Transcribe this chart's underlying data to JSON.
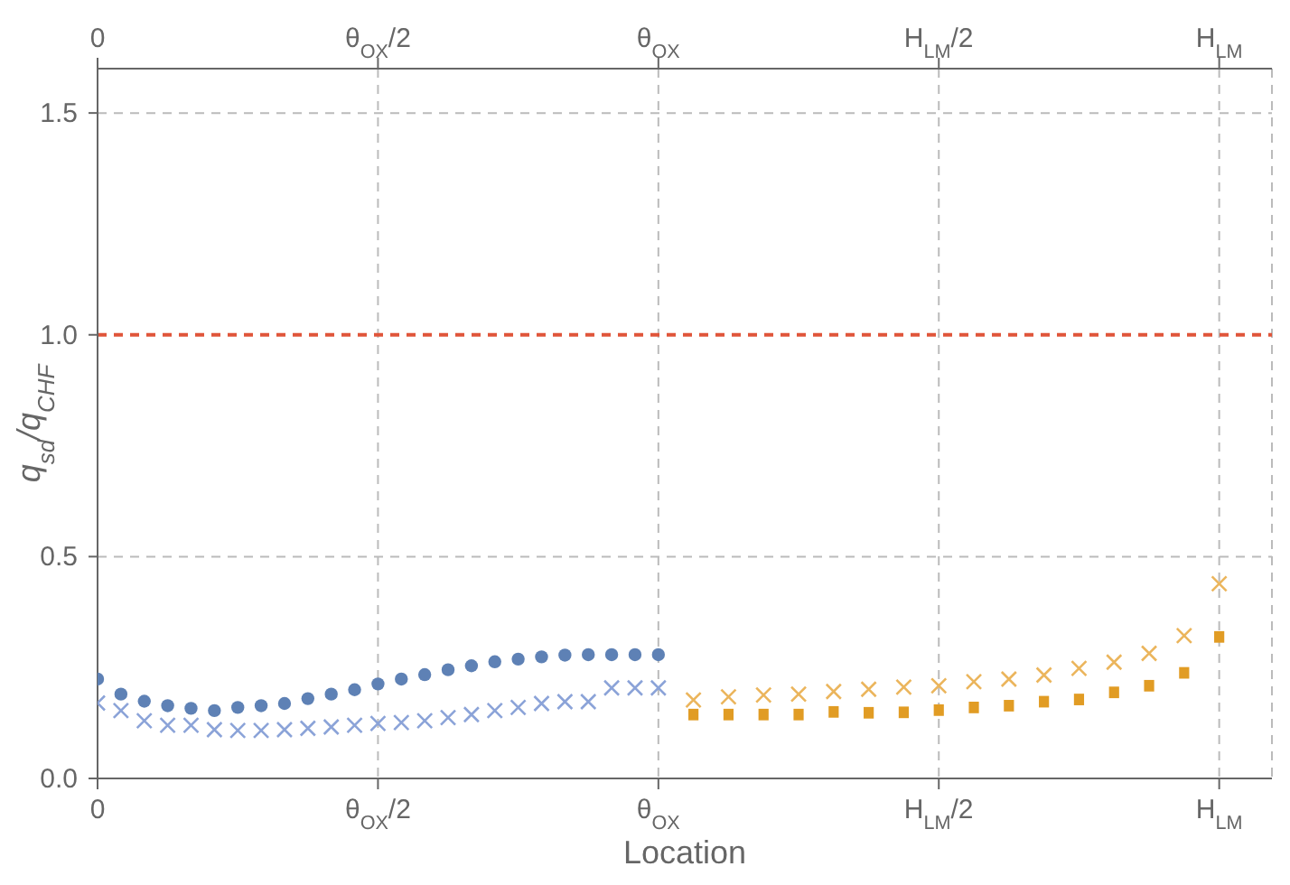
{
  "chart_data": {
    "type": "scatter",
    "xlabel": "Location",
    "ylabel": "q$_{sd}$/q$_{CHF}$",
    "categories": [
      "0",
      null,
      null,
      null,
      null,
      null,
      null,
      null,
      null,
      null,
      null,
      null,
      null,
      null,
      null,
      null,
      null,
      null,
      null,
      null,
      null,
      null,
      null,
      null,
      "θ$_{OX}$/2",
      null,
      null,
      null,
      null,
      null,
      null,
      null,
      null,
      null,
      null,
      null,
      null,
      null,
      null,
      null,
      null,
      null,
      null,
      null,
      null,
      null,
      null,
      null,
      "θ$_{OX}$",
      null,
      null,
      null,
      null,
      null,
      null,
      null,
      null,
      null,
      null,
      null,
      null,
      null,
      null,
      null,
      null,
      null,
      null,
      null,
      null,
      null,
      null,
      null,
      "H$_{LM}$/2",
      null,
      null,
      null,
      null,
      null,
      null,
      null,
      null,
      null,
      null,
      null,
      null,
      null,
      null,
      null,
      null,
      null,
      null,
      null,
      null,
      null,
      null,
      null,
      "H$_{LM}$"
    ],
    "ylim": [
      0,
      1.6
    ],
    "yticks": [
      {
        "value": 0,
        "label": "0.0"
      },
      {
        "value": 0.5,
        "label": "0.5"
      },
      {
        "value": 1,
        "label": "1.0"
      },
      {
        "value": 1.5,
        "label": "1.5"
      }
    ],
    "grid": true,
    "ref_lines": [
      {
        "axis": "y",
        "value": 1,
        "color": "#e0553a",
        "line_style": "dashed"
      }
    ],
    "series": [
      {
        "color": "#5e81b5",
        "marker": "circle",
        "values": [
          0.224,
          null,
          0.19,
          null,
          0.174,
          null,
          0.164,
          null,
          0.158,
          null,
          0.153,
          null,
          0.16,
          null,
          0.164,
          null,
          0.169,
          null,
          0.18,
          null,
          0.19,
          null,
          0.2,
          null,
          0.213,
          null,
          0.224,
          null,
          0.234,
          null,
          0.245,
          null,
          0.254,
          null,
          0.263,
          null,
          0.269,
          null,
          0.274,
          null,
          0.278,
          null,
          0.279,
          null,
          0.279,
          null,
          0.279,
          null,
          0.279,
          null,
          null,
          null,
          null,
          null,
          null,
          null,
          null,
          null,
          null,
          null,
          null,
          null,
          null,
          null,
          null,
          null,
          null,
          null,
          null,
          null,
          null,
          null,
          null,
          null,
          null,
          null,
          null,
          null,
          null,
          null,
          null,
          null,
          null,
          null,
          null,
          null,
          null,
          null,
          null,
          null,
          null,
          null,
          null,
          null,
          null,
          null,
          null
        ]
      },
      {
        "color": "#8ba3d8",
        "marker": "cross",
        "values": [
          0.17,
          null,
          0.153,
          null,
          0.13,
          null,
          0.12,
          null,
          0.12,
          null,
          0.11,
          null,
          0.108,
          null,
          0.108,
          null,
          0.11,
          null,
          0.113,
          null,
          0.116,
          null,
          0.12,
          null,
          0.124,
          null,
          0.126,
          null,
          0.13,
          null,
          0.137,
          null,
          0.144,
          null,
          0.153,
          null,
          0.16,
          null,
          0.169,
          null,
          0.173,
          null,
          0.173,
          null,
          0.204,
          null,
          0.204,
          null,
          0.204,
          null,
          null,
          null,
          null,
          null,
          null,
          null,
          null,
          null,
          null,
          null,
          null,
          null,
          null,
          null,
          null,
          null,
          null,
          null,
          null,
          null,
          null,
          null,
          null,
          null,
          null,
          null,
          null,
          null,
          null,
          null,
          null,
          null,
          null,
          null,
          null,
          null,
          null,
          null,
          null,
          null,
          null,
          null,
          null,
          null,
          null,
          null,
          null
        ]
      },
      {
        "color": "#e19c24",
        "marker": "square",
        "values": [
          null,
          null,
          null,
          null,
          null,
          null,
          null,
          null,
          null,
          null,
          null,
          null,
          null,
          null,
          null,
          null,
          null,
          null,
          null,
          null,
          null,
          null,
          null,
          null,
          null,
          null,
          null,
          null,
          null,
          null,
          null,
          null,
          null,
          null,
          null,
          null,
          null,
          null,
          null,
          null,
          null,
          null,
          null,
          null,
          null,
          null,
          null,
          null,
          null,
          null,
          null,
          0.144,
          null,
          null,
          0.144,
          null,
          null,
          0.144,
          null,
          null,
          0.144,
          null,
          null,
          0.15,
          null,
          null,
          0.148,
          null,
          null,
          0.149,
          null,
          null,
          0.154,
          null,
          null,
          0.16,
          null,
          null,
          0.164,
          null,
          null,
          0.173,
          null,
          null,
          0.178,
          null,
          null,
          0.194,
          null,
          null,
          0.209,
          null,
          null,
          0.238,
          null,
          null,
          0.319
        ]
      },
      {
        "color": "#ebb55c",
        "marker": "cross",
        "values": [
          null,
          null,
          null,
          null,
          null,
          null,
          null,
          null,
          null,
          null,
          null,
          null,
          null,
          null,
          null,
          null,
          null,
          null,
          null,
          null,
          null,
          null,
          null,
          null,
          null,
          null,
          null,
          null,
          null,
          null,
          null,
          null,
          null,
          null,
          null,
          null,
          null,
          null,
          null,
          null,
          null,
          null,
          null,
          null,
          null,
          null,
          null,
          null,
          null,
          null,
          null,
          0.177,
          null,
          null,
          0.184,
          null,
          null,
          0.188,
          null,
          null,
          0.19,
          null,
          null,
          0.196,
          null,
          null,
          0.201,
          null,
          null,
          0.206,
          null,
          null,
          0.209,
          null,
          null,
          0.218,
          null,
          null,
          0.224,
          null,
          null,
          0.233,
          null,
          null,
          0.248,
          null,
          null,
          0.262,
          null,
          null,
          0.282,
          null,
          null,
          0.322,
          null,
          null,
          0.439
        ]
      }
    ]
  }
}
